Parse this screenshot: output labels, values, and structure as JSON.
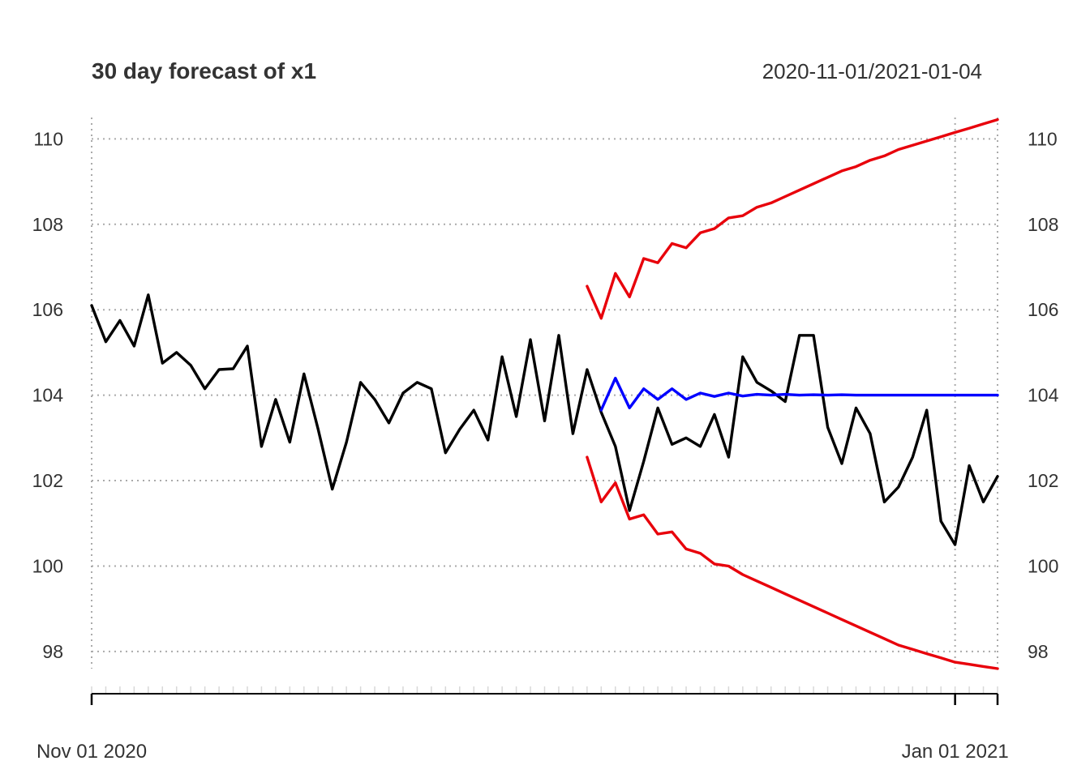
{
  "chart_data": {
    "type": "line",
    "title": "30 day forecast of x1",
    "date_range": "2020-11-01/2021-01-04",
    "xlabel": "",
    "ylabel": "",
    "x_start_date": "2020-11-01",
    "x_end_date": "2021-01-04",
    "x_tick_labels": [
      {
        "date": "2020-11-01",
        "label": "Nov 01 2020"
      },
      {
        "date": "2021-01-01",
        "label": "Jan 01 2021"
      }
    ],
    "ylim": [
      97.6,
      110.5
    ],
    "y_ticks": [
      98,
      100,
      102,
      104,
      106,
      108,
      110
    ],
    "grid": true,
    "series": [
      {
        "color": "#000000",
        "x": [
          "2020-11-01",
          "2020-11-02",
          "2020-11-03",
          "2020-11-04",
          "2020-11-05",
          "2020-11-06",
          "2020-11-07",
          "2020-11-08",
          "2020-11-09",
          "2020-11-10",
          "2020-11-11",
          "2020-11-12",
          "2020-11-13",
          "2020-11-14",
          "2020-11-15",
          "2020-11-16",
          "2020-11-17",
          "2020-11-18",
          "2020-11-19",
          "2020-11-20",
          "2020-11-21",
          "2020-11-22",
          "2020-11-23",
          "2020-11-24",
          "2020-11-25",
          "2020-11-26",
          "2020-11-27",
          "2020-11-28",
          "2020-11-29",
          "2020-11-30",
          "2020-12-01",
          "2020-12-02",
          "2020-12-03",
          "2020-12-04",
          "2020-12-05",
          "2020-12-06",
          "2020-12-07",
          "2020-12-08",
          "2020-12-09",
          "2020-12-10",
          "2020-12-11",
          "2020-12-12",
          "2020-12-13",
          "2020-12-14",
          "2020-12-15",
          "2020-12-16",
          "2020-12-17",
          "2020-12-18",
          "2020-12-19",
          "2020-12-20",
          "2020-12-21",
          "2020-12-22",
          "2020-12-23",
          "2020-12-24",
          "2020-12-25",
          "2020-12-26",
          "2020-12-27",
          "2020-12-28",
          "2020-12-29",
          "2020-12-30",
          "2020-12-31",
          "2021-01-01",
          "2021-01-02",
          "2021-01-03",
          "2021-01-04"
        ],
        "values": [
          106.1,
          105.25,
          105.75,
          105.15,
          106.35,
          104.75,
          105.0,
          104.7,
          104.15,
          104.6,
          104.62,
          105.15,
          102.8,
          103.9,
          102.9,
          104.5,
          103.2,
          101.8,
          102.9,
          104.3,
          103.9,
          103.35,
          104.05,
          104.3,
          104.15,
          102.65,
          103.2,
          103.65,
          102.95,
          104.9,
          103.5,
          105.3,
          103.4,
          105.4,
          103.1,
          104.6,
          103.6,
          102.8,
          101.3,
          102.45,
          103.7,
          102.85,
          103.0,
          102.8,
          103.55,
          102.55,
          104.9,
          104.3,
          104.1,
          103.85,
          105.4,
          105.4,
          103.25,
          102.4,
          103.7,
          103.1,
          101.5,
          101.85,
          102.55,
          103.65,
          101.05,
          100.5,
          102.35,
          101.5,
          102.1
        ]
      },
      {
        "color": "#0000ff",
        "x": [
          "2020-12-07",
          "2020-12-08",
          "2020-12-09",
          "2020-12-10",
          "2020-12-11",
          "2020-12-12",
          "2020-12-13",
          "2020-12-14",
          "2020-12-15",
          "2020-12-16",
          "2020-12-17",
          "2020-12-18",
          "2020-12-19",
          "2020-12-20",
          "2020-12-21",
          "2020-12-22",
          "2020-12-23",
          "2020-12-24",
          "2020-12-25",
          "2020-12-26",
          "2020-12-27",
          "2020-12-28",
          "2020-12-29",
          "2020-12-30",
          "2020-12-31",
          "2021-01-01",
          "2021-01-02",
          "2021-01-03",
          "2021-01-04"
        ],
        "values": [
          103.65,
          104.4,
          103.7,
          104.15,
          103.9,
          104.15,
          103.9,
          104.05,
          103.97,
          104.05,
          103.98,
          104.02,
          104.0,
          104.02,
          104.0,
          104.01,
          104.0,
          104.01,
          104.0,
          104.0,
          104.0,
          104.0,
          104.0,
          104.0,
          104.0,
          104.0,
          104.0,
          104.0,
          104.0
        ]
      },
      {
        "color": "#e8000b",
        "x": [
          "2020-12-06",
          "2020-12-07",
          "2020-12-08",
          "2020-12-09",
          "2020-12-10",
          "2020-12-11",
          "2020-12-12",
          "2020-12-13",
          "2020-12-14",
          "2020-12-15",
          "2020-12-16",
          "2020-12-17",
          "2020-12-18",
          "2020-12-19",
          "2020-12-20",
          "2020-12-21",
          "2020-12-22",
          "2020-12-23",
          "2020-12-24",
          "2020-12-25",
          "2020-12-26",
          "2020-12-27",
          "2020-12-28",
          "2020-12-29",
          "2020-12-30",
          "2020-12-31",
          "2021-01-01",
          "2021-01-02",
          "2021-01-03",
          "2021-01-04"
        ],
        "values": [
          106.55,
          105.8,
          106.85,
          106.3,
          107.2,
          107.1,
          107.55,
          107.45,
          107.8,
          107.9,
          108.15,
          108.2,
          108.4,
          108.5,
          108.65,
          108.8,
          108.95,
          109.1,
          109.25,
          109.35,
          109.5,
          109.6,
          109.75,
          109.85,
          109.95,
          110.05,
          110.15,
          110.25,
          110.35,
          110.45
        ]
      },
      {
        "color": "#e8000b",
        "x": [
          "2020-12-06",
          "2020-12-07",
          "2020-12-08",
          "2020-12-09",
          "2020-12-10",
          "2020-12-11",
          "2020-12-12",
          "2020-12-13",
          "2020-12-14",
          "2020-12-15",
          "2020-12-16",
          "2020-12-17",
          "2020-12-18",
          "2020-12-19",
          "2020-12-20",
          "2020-12-21",
          "2020-12-22",
          "2020-12-23",
          "2020-12-24",
          "2020-12-25",
          "2020-12-26",
          "2020-12-27",
          "2020-12-28",
          "2020-12-29",
          "2020-12-30",
          "2020-12-31",
          "2021-01-01",
          "2021-01-02",
          "2021-01-03",
          "2021-01-04"
        ],
        "values": [
          102.55,
          101.5,
          101.95,
          101.1,
          101.2,
          100.75,
          100.8,
          100.4,
          100.3,
          100.05,
          100.0,
          99.8,
          99.65,
          99.5,
          99.35,
          99.2,
          99.05,
          98.9,
          98.75,
          98.6,
          98.45,
          98.3,
          98.15,
          98.05,
          97.95,
          97.85,
          97.75,
          97.7,
          97.65,
          97.6
        ]
      }
    ]
  }
}
